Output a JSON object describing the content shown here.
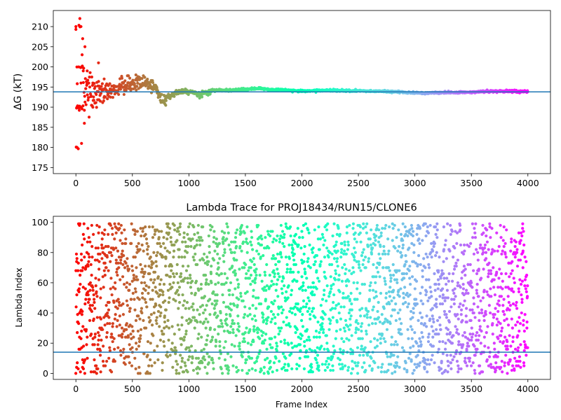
{
  "chart_data": [
    {
      "type": "scatter",
      "title": "",
      "xlabel": "",
      "ylabel": "ΔG (kT)",
      "xlim": [
        -200,
        4200
      ],
      "ylim": [
        173.5,
        214
      ],
      "xticks": [
        0,
        500,
        1000,
        1500,
        2000,
        2500,
        3000,
        3500,
        4000
      ],
      "yticks": [
        175,
        180,
        185,
        190,
        195,
        200,
        205,
        210
      ],
      "colormap": "rainbow",
      "reference_line": {
        "y": 193.8,
        "color": "#1f77b4"
      },
      "anchor_points": [
        [
          0,
          210
        ],
        [
          10,
          190
        ],
        [
          10,
          180
        ],
        [
          25,
          200
        ],
        [
          35,
          212
        ],
        [
          40,
          190
        ],
        [
          45,
          196
        ],
        [
          50,
          181
        ],
        [
          55,
          203
        ],
        [
          60,
          207
        ],
        [
          65,
          199
        ],
        [
          75,
          186
        ],
        [
          80,
          205
        ],
        [
          100,
          199
        ],
        [
          150,
          196
        ],
        [
          200,
          201
        ],
        [
          250,
          197
        ],
        [
          300,
          194
        ],
        [
          400,
          195
        ],
        [
          500,
          196
        ],
        [
          600,
          196
        ],
        [
          700,
          195
        ],
        [
          760,
          191.8
        ],
        [
          900,
          193.8
        ],
        [
          1000,
          194
        ],
        [
          1100,
          193.1
        ],
        [
          1200,
          194.1
        ],
        [
          1500,
          194.4
        ],
        [
          1600,
          194.6
        ],
        [
          2000,
          194
        ],
        [
          2200,
          194.2
        ],
        [
          2500,
          194
        ],
        [
          2800,
          193.9
        ],
        [
          3000,
          193.5
        ],
        [
          3500,
          193.7
        ],
        [
          3700,
          194
        ],
        [
          3990,
          193.8
        ]
      ],
      "grid": false
    },
    {
      "type": "scatter",
      "title": "Lambda Trace for PROJ18434/RUN15/CLONE6",
      "xlabel": "Frame Index",
      "ylabel": "Lambda Index",
      "xlim": [
        -200,
        4200
      ],
      "ylim": [
        -4,
        104
      ],
      "xticks": [
        0,
        500,
        1000,
        1500,
        2000,
        2500,
        3000,
        3500,
        4000
      ],
      "yticks": [
        0,
        20,
        40,
        60,
        80,
        100
      ],
      "colormap": "rainbow",
      "reference_line": {
        "y": 14,
        "color": "#1f77b4"
      },
      "value_range": [
        0,
        99
      ],
      "frame_range": [
        0,
        3999
      ],
      "grid": false
    }
  ]
}
